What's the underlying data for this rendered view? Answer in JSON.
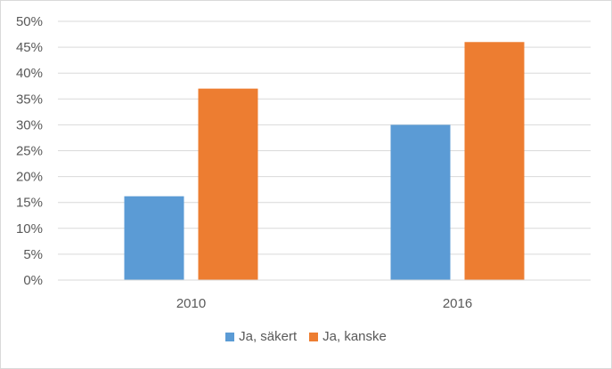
{
  "chart_data": {
    "type": "bar",
    "title": "",
    "xlabel": "",
    "ylabel": "",
    "categories": [
      "2010",
      "2016"
    ],
    "series": [
      {
        "name": "Ja, säkert",
        "color": "#5b9bd5",
        "values": [
          0.162,
          0.3
        ]
      },
      {
        "name": "Ja, kanske",
        "color": "#ed7d31",
        "values": [
          0.37,
          0.46
        ]
      }
    ],
    "ylim": [
      0,
      0.5
    ],
    "yticks": [
      0,
      0.05,
      0.1,
      0.15,
      0.2,
      0.25,
      0.3,
      0.35,
      0.4,
      0.45,
      0.5
    ],
    "ytick_labels": [
      "0%",
      "5%",
      "10%",
      "15%",
      "20%",
      "25%",
      "30%",
      "35%",
      "40%",
      "45%",
      "50%"
    ],
    "grid": true,
    "legend_position": "bottom"
  }
}
